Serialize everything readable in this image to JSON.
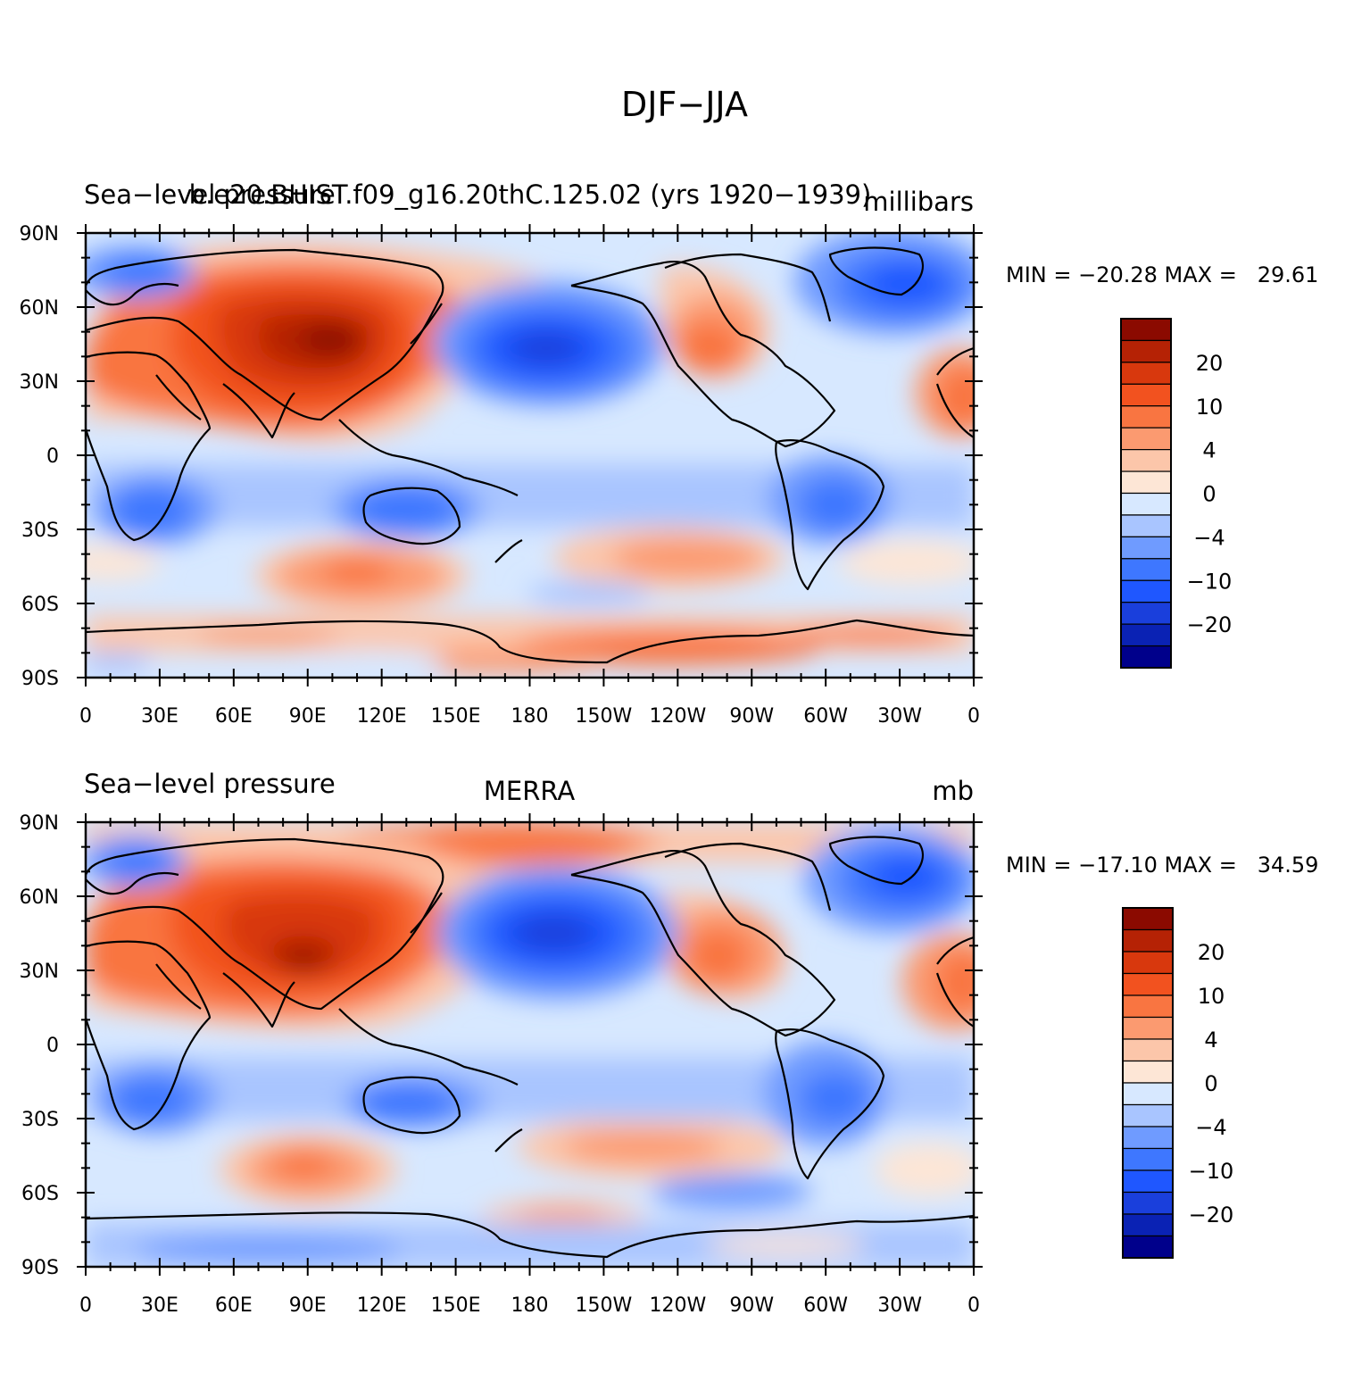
{
  "figure": {
    "title": "DJF−JJA"
  },
  "colorbar_levels": [
    "−inf",
    "−20",
    "−15",
    "−10",
    "−8",
    "−4",
    "−2",
    "0",
    "2",
    "4",
    "8",
    "10",
    "15",
    "20",
    "25"
  ],
  "colors": [
    "#00008b",
    "#0a22b4",
    "#1a3fdc",
    "#1f57ff",
    "#3e77ff",
    "#6f9bff",
    "#a9c5ff",
    "#d7e8ff",
    "#fde6d6",
    "#fcc6aa",
    "#fb9a70",
    "#f97541",
    "#f2521f",
    "#d8380d",
    "#b52205",
    "#8b0a00"
  ],
  "panels": [
    {
      "id": "top",
      "left_title": "Sea−level pressure",
      "center_title": "b.e20.BHIST.f09_g16.20thC.125.02 (yrs 1920−1939)",
      "right_title": "millibars",
      "min_max": "MIN = −20.28 MAX =   29.61",
      "lat_labels": [
        "90N",
        "60N",
        "30N",
        "0",
        "30S",
        "60S",
        "90S"
      ],
      "lon_labels": [
        "0",
        "30E",
        "60E",
        "90E",
        "120E",
        "150E",
        "180",
        "150W",
        "120W",
        "90W",
        "60W",
        "30W",
        "0"
      ],
      "colorbar_labels": [
        "20",
        "10",
        "4",
        "0",
        "−4",
        "−10",
        "−20"
      ]
    },
    {
      "id": "bottom",
      "left_title": "Sea−level pressure",
      "center_title": "MERRA",
      "right_title": "mb",
      "min_max": "MIN = −17.10 MAX =   34.59",
      "lat_labels": [
        "90N",
        "60N",
        "30N",
        "0",
        "30S",
        "60S",
        "90S"
      ],
      "lon_labels": [
        "0",
        "30E",
        "60E",
        "90E",
        "120E",
        "150E",
        "180",
        "150W",
        "120W",
        "90W",
        "60W",
        "30W",
        "0"
      ],
      "colorbar_labels": [
        "20",
        "10",
        "4",
        "0",
        "−4",
        "−10",
        "−20"
      ]
    }
  ]
}
